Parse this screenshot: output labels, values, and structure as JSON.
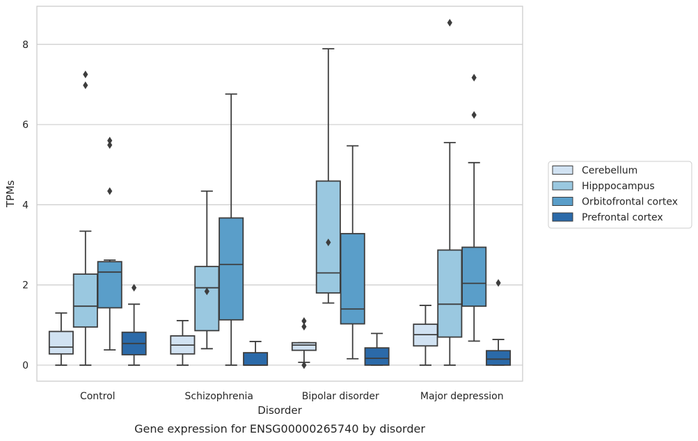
{
  "chart_data": {
    "type": "box",
    "caption": "Gene expression for ENSG00000265740 by disorder",
    "xlabel": "Disorder",
    "ylabel": "TPMs",
    "ylim": [
      -0.4,
      8.95
    ],
    "yticks": [
      0,
      2,
      4,
      6,
      8
    ],
    "grid": "horizontal",
    "legend_position": "right",
    "categories": [
      "Control",
      "Schizophrenia",
      "Bipolar disorder",
      "Major depression"
    ],
    "series": [
      {
        "name": "Cerebellum",
        "color": "#d1e2f2",
        "boxes": [
          {
            "whislo": 0,
            "q1": 0.28,
            "med": 0.45,
            "q3": 0.84,
            "whishi": 1.3,
            "fliers": []
          },
          {
            "whislo": 0,
            "q1": 0.28,
            "med": 0.5,
            "q3": 0.73,
            "whishi": 1.11,
            "fliers": []
          },
          {
            "whislo": 0.07,
            "q1": 0.37,
            "med": 0.5,
            "q3": 0.56,
            "whishi": 0.56,
            "fliers": [
              1.1,
              0.96,
              0.0
            ]
          },
          {
            "whislo": 0,
            "q1": 0.48,
            "med": 0.76,
            "q3": 1.02,
            "whishi": 1.49,
            "fliers": []
          }
        ]
      },
      {
        "name": "Hipppocampus",
        "color": "#9ac8e0",
        "boxes": [
          {
            "whislo": 0,
            "q1": 0.95,
            "med": 1.47,
            "q3": 2.27,
            "whishi": 3.34,
            "fliers": [
              7.25,
              6.98
            ]
          },
          {
            "whislo": 0.41,
            "q1": 0.86,
            "med": 1.93,
            "q3": 2.46,
            "whishi": 4.34,
            "fliers": [
              1.84
            ]
          },
          {
            "whislo": 1.55,
            "q1": 1.8,
            "med": 2.3,
            "q3": 4.59,
            "whishi": 7.89,
            "fliers": [
              3.06
            ]
          },
          {
            "whislo": 0,
            "q1": 0.7,
            "med": 1.52,
            "q3": 2.87,
            "whishi": 5.55,
            "fliers": [
              8.54
            ]
          }
        ]
      },
      {
        "name": "Orbitofrontal cortex",
        "color": "#5a9ec9",
        "boxes": [
          {
            "whislo": 0.38,
            "q1": 1.43,
            "med": 2.32,
            "q3": 2.58,
            "whishi": 2.62,
            "fliers": [
              5.6,
              5.49,
              4.34
            ]
          },
          {
            "whislo": 0,
            "q1": 1.13,
            "med": 2.51,
            "q3": 3.67,
            "whishi": 6.76,
            "fliers": []
          },
          {
            "whislo": 0.16,
            "q1": 1.03,
            "med": 1.4,
            "q3": 3.28,
            "whishi": 5.47,
            "fliers": []
          },
          {
            "whislo": 0.6,
            "q1": 1.47,
            "med": 2.04,
            "q3": 2.94,
            "whishi": 5.05,
            "fliers": [
              7.17,
              6.24
            ]
          }
        ]
      },
      {
        "name": "Prefrontal cortex",
        "color": "#2b6aa9",
        "boxes": [
          {
            "whislo": 0,
            "q1": 0.26,
            "med": 0.54,
            "q3": 0.82,
            "whishi": 1.52,
            "fliers": [
              1.93
            ]
          },
          {
            "whislo": 0,
            "q1": 0,
            "med": 0,
            "q3": 0.31,
            "whishi": 0.59,
            "fliers": []
          },
          {
            "whislo": 0,
            "q1": 0,
            "med": 0.17,
            "q3": 0.43,
            "whishi": 0.79,
            "fliers": []
          },
          {
            "whislo": 0,
            "q1": 0,
            "med": 0.15,
            "q3": 0.36,
            "whishi": 0.64,
            "fliers": [
              2.05
            ]
          }
        ]
      }
    ]
  }
}
